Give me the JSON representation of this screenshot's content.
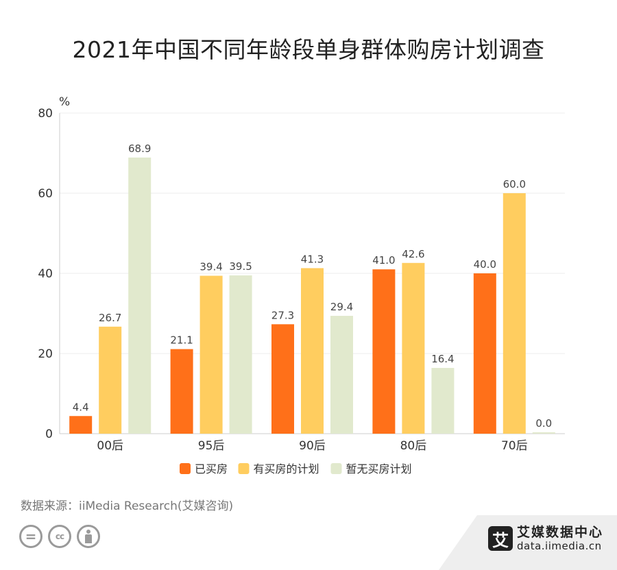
{
  "title": "2021年中国不同年龄段单身群体购房计划调查",
  "source": "数据来源：iiMedia Research(艾媒咨询)",
  "brand": {
    "logo_char": "艾",
    "name": "艾媒数据中心",
    "url": "data.iimedia.cn"
  },
  "colors": {
    "bought": "#ff7019",
    "plan": "#ffcd5f",
    "no_plan": "#e1e9cd",
    "grid": "#ececec",
    "axis": "#cccccc",
    "text": "#333333"
  },
  "chart_data": {
    "type": "bar",
    "title": "2021年中国不同年龄段单身群体购房计划调查",
    "ylabel": "%",
    "ylim": [
      0,
      80
    ],
    "yticks": [
      0,
      20,
      40,
      60,
      80
    ],
    "grid": true,
    "legend_position": "bottom",
    "categories": [
      "00后",
      "95后",
      "90后",
      "80后",
      "70后"
    ],
    "series": [
      {
        "name": "已买房",
        "values": [
          4.4,
          21.1,
          27.3,
          41.0,
          40.0
        ]
      },
      {
        "name": "有买房的计划",
        "values": [
          26.7,
          39.4,
          41.3,
          42.6,
          60.0
        ]
      },
      {
        "name": "暂无买房计划",
        "values": [
          68.9,
          39.5,
          29.4,
          16.4,
          0.0
        ]
      }
    ]
  }
}
